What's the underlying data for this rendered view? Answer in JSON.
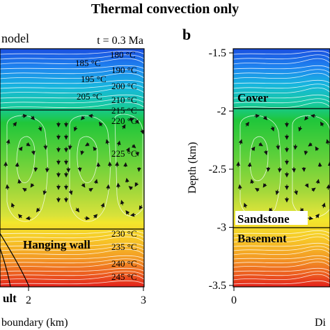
{
  "figure": {
    "title": "Thermal convection only"
  },
  "panel_a": {
    "label_partial": "nodel",
    "time": "t = 0.3 Ma",
    "isotherms": [
      "180 °C",
      "185 °C",
      "190 °C",
      "195 °C",
      "200 °C",
      "205 °C",
      "210 °C",
      "215 °C",
      "220 °C",
      "225 °C",
      "230 °C",
      "235 °C",
      "240 °C",
      "245 °C"
    ],
    "units": [
      "Hanging wall"
    ],
    "fault_label_partial": "ult",
    "x_ticks": [
      "2",
      "3"
    ],
    "x_axis_partial": "boundary (km)"
  },
  "panel_b": {
    "label": "b",
    "units": [
      "Cover",
      "Sandstone",
      "Basement"
    ],
    "y_axis_label": "Depth (km)",
    "y_ticks": [
      "-1.5",
      "-2",
      "-2.5",
      "-3",
      "-3.5"
    ],
    "x_ticks": [
      "0"
    ],
    "x_axis_partial": "Di"
  },
  "colors": {
    "hot": "#e3201b",
    "warm": "#f6e22a",
    "mid": "#8ed33a",
    "green": "#1ccc3a",
    "cool": "#1fb1e8",
    "cold": "#1e5fe6",
    "contour": "#ffffff",
    "arrow": "#111111"
  }
}
